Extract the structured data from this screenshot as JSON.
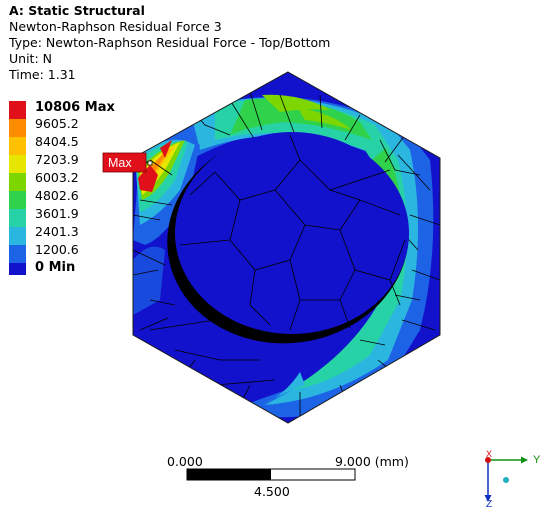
{
  "header": {
    "title": "A: Static Structural",
    "result_name": "Newton-Raphson Residual Force 3",
    "type_line": "Type: Newton-Raphson Residual Force - Top/Bottom",
    "unit_line": "Unit: N",
    "time_line": "Time: 1.31"
  },
  "legend": {
    "entries": [
      {
        "label": "10806 Max",
        "color": "#e0101a"
      },
      {
        "label": "9605.2",
        "color": "#ff8c00"
      },
      {
        "label": "8404.5",
        "color": "#ffc000"
      },
      {
        "label": "7203.9",
        "color": "#e6e600"
      },
      {
        "label": "6003.2",
        "color": "#7ed600"
      },
      {
        "label": "4802.6",
        "color": "#2fd24a"
      },
      {
        "label": "3601.9",
        "color": "#27d3a6"
      },
      {
        "label": "2401.3",
        "color": "#2bb6e0"
      },
      {
        "label": "1200.6",
        "color": "#1d63e6"
      },
      {
        "label": "0 Min",
        "color": "#1212cc"
      }
    ]
  },
  "probe": {
    "label": "Max",
    "color": "#e0101a"
  },
  "scale_bar": {
    "left_label": "0.000",
    "right_label": "9.000 (mm)",
    "mid_label": "4.500"
  },
  "triad": {
    "x_label": "X",
    "y_label": "Y",
    "z_label": "Z"
  }
}
